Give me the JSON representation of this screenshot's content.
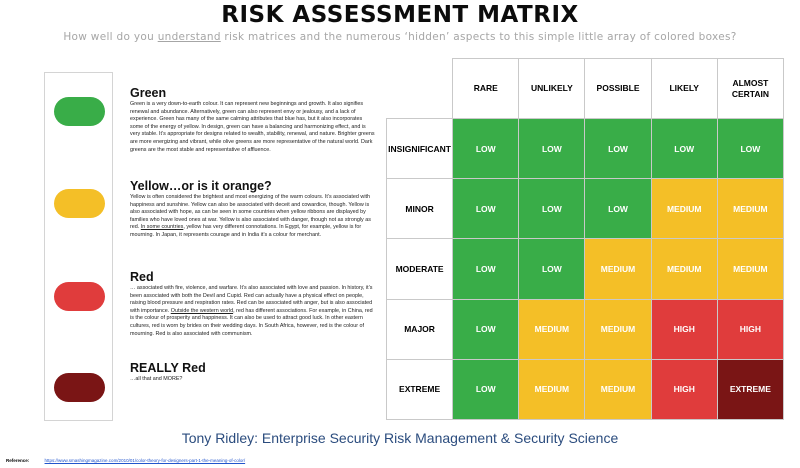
{
  "title": "RISK ASSESSMENT MATRIX",
  "subtitle": {
    "before": "How well do you ",
    "underlined": "understand",
    "after": " risk matrices and the numerous ‘hidden’ aspects to this simple little array of colored boxes?"
  },
  "colors": {
    "green": "#39ad48",
    "yellow": "#f4bf27",
    "red": "#e03c3c",
    "dark_red": "#7a1515"
  },
  "descriptions": {
    "green": {
      "heading": "Green",
      "text": "Green is a very down-to-earth colour. It can represent new beginnings and growth. It also signifies renewal and abundance. Alternatively, green can also represent envy or jealousy, and a lack of experience. Green has many of the same calming attributes that blue has, but it also incorporates some of the energy of yellow. In design, green can have a balancing and harmonizing effect, and is very stable. It’s appropriate for designs related to wealth, stability, renewal, and nature. Brighter greens are more energizing and vibrant, while olive greens are more representative of the natural world. Dark greens are the most stable and representative of affluence."
    },
    "yellow": {
      "heading": "Yellow…or is it orange?",
      "text_before": "Yellow is often considered the brightest and most energizing of the warm colours. It’s associated with happiness and sunshine. Yellow can also be associated with deceit and cowardice, though. Yellow is also associated with hope, as can be seen in some countries when yellow ribbons are displayed by families who have loved ones at war. Yellow is also associated with danger, though not as strongly as red. ",
      "text_underlined": "In some countries",
      "text_after": ", yellow has very different connotations. In Egypt, for example, yellow is for mourning. In Japan, it represents courage and in India it’s a colour for merchant."
    },
    "red": {
      "heading": "Red",
      "text_before": "… associated with fire, violence, and warfare. It’s also associated with love and passion. In history, it’s been associated with both the Devil and Cupid. Red can actually have a physical effect on people, raising blood pressure and respiration rates. Red can be associated with anger, but is also associated with importance. ",
      "text_underlined": "Outside the western world",
      "text_after": ", red has different associations. For example, in China, red is the colour of prosperity and happiness. It can also be used to attract good luck. In other eastern cultures, red is worn by brides on their wedding days. In South Africa, however, red is the colour of mourning. Red is also associated with communism."
    },
    "really_red": {
      "heading": "REALLY Red",
      "text": "…all that and MORE?"
    }
  },
  "matrix": {
    "columns": [
      "RARE",
      "UNLIKELY",
      "POSSIBLE",
      "LIKELY",
      "ALMOST CERTAIN"
    ],
    "rows": [
      {
        "label": "INSIGNIFICANT",
        "cells": [
          {
            "text": "LOW",
            "level": "green"
          },
          {
            "text": "LOW",
            "level": "green"
          },
          {
            "text": "LOW",
            "level": "green"
          },
          {
            "text": "LOW",
            "level": "green"
          },
          {
            "text": "LOW",
            "level": "green"
          }
        ]
      },
      {
        "label": "MINOR",
        "cells": [
          {
            "text": "LOW",
            "level": "green"
          },
          {
            "text": "LOW",
            "level": "green"
          },
          {
            "text": "LOW",
            "level": "green"
          },
          {
            "text": "MEDIUM",
            "level": "yellow"
          },
          {
            "text": "MEDIUM",
            "level": "yellow"
          }
        ]
      },
      {
        "label": "MODERATE",
        "cells": [
          {
            "text": "LOW",
            "level": "green"
          },
          {
            "text": "LOW",
            "level": "green"
          },
          {
            "text": "MEDIUM",
            "level": "yellow"
          },
          {
            "text": "MEDIUM",
            "level": "yellow"
          },
          {
            "text": "MEDIUM",
            "level": "yellow"
          }
        ]
      },
      {
        "label": "MAJOR",
        "cells": [
          {
            "text": "LOW",
            "level": "green"
          },
          {
            "text": "MEDIUM",
            "level": "yellow"
          },
          {
            "text": "MEDIUM",
            "level": "yellow"
          },
          {
            "text": "HIGH",
            "level": "red"
          },
          {
            "text": "HIGH",
            "level": "red"
          }
        ]
      },
      {
        "label": "EXTREME",
        "cells": [
          {
            "text": "LOW",
            "level": "green"
          },
          {
            "text": "MEDIUM",
            "level": "yellow"
          },
          {
            "text": "MEDIUM",
            "level": "yellow"
          },
          {
            "text": "HIGH",
            "level": "red"
          },
          {
            "text": "EXTREME",
            "level": "dark_red"
          }
        ]
      }
    ]
  },
  "footer": "Tony Ridley: Enterprise Security Risk Management & Security Science",
  "reference": {
    "label": "Reference:",
    "url": "https://www.smashingmagazine.com/2010/01/color-theory-for-designers-part-1-the-meaning-of-color/"
  }
}
